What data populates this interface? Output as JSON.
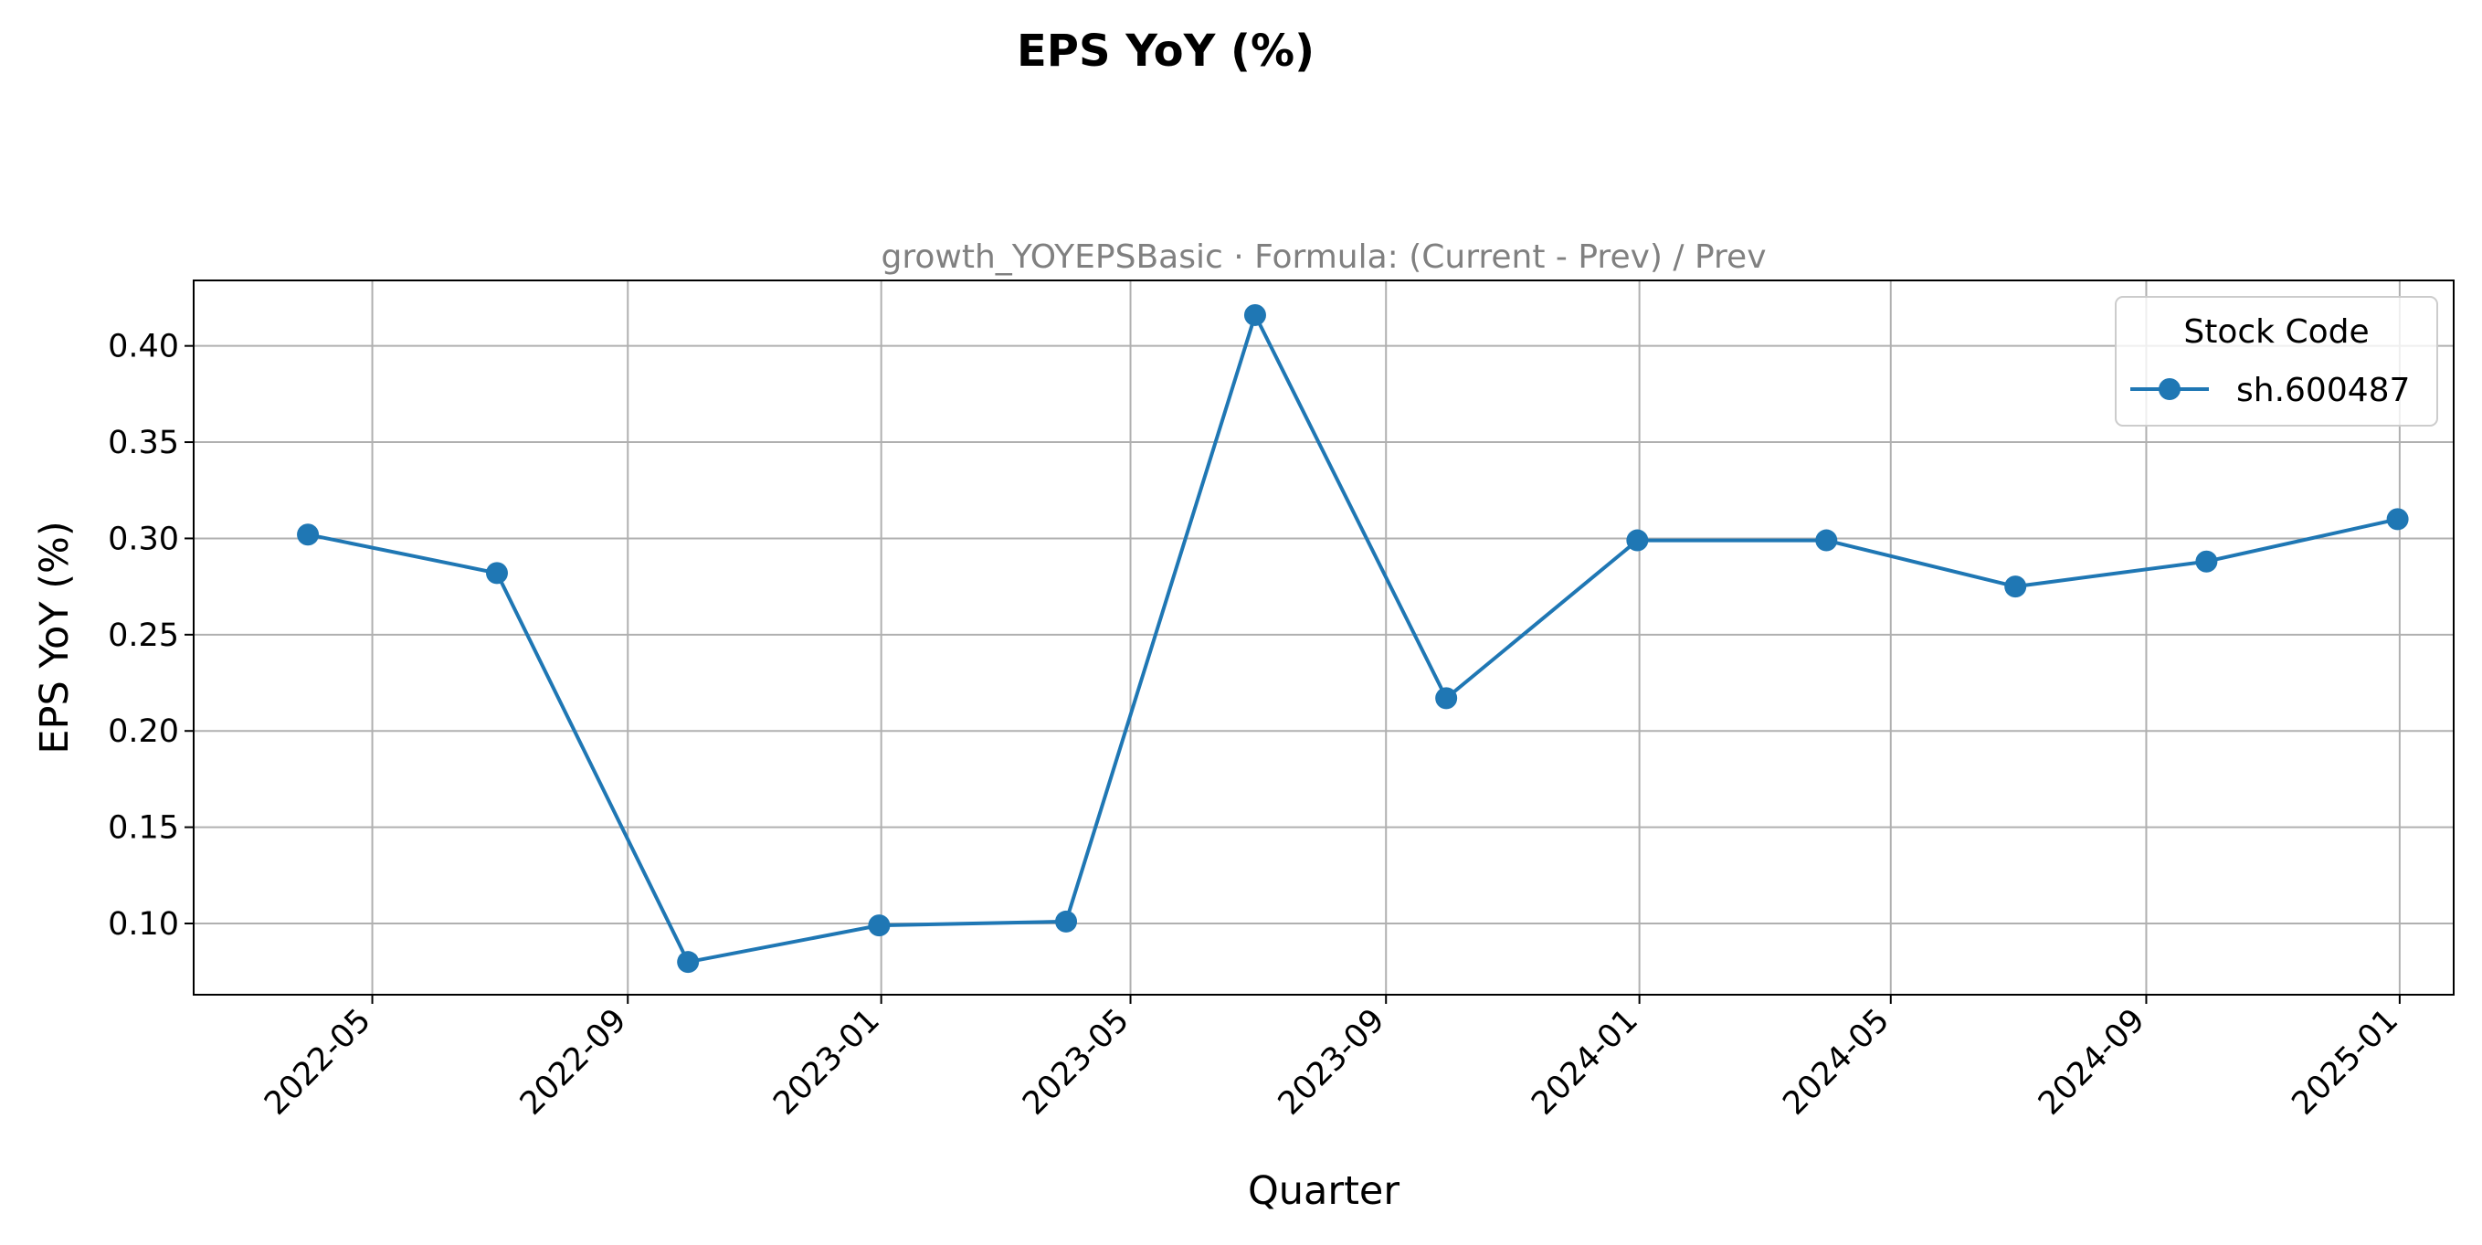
{
  "chart_data": {
    "type": "line",
    "title": "EPS YoY (%)",
    "subtitle": "growth_YOYEPSBasic · Formula: (Current - Prev) / Prev",
    "xlabel": "Quarter",
    "ylabel": "EPS YoY (%)",
    "x": [
      "2022-03-31",
      "2022-06-30",
      "2022-09-30",
      "2022-12-31",
      "2023-03-31",
      "2023-06-30",
      "2023-09-30",
      "2023-12-31",
      "2024-03-31",
      "2024-06-30",
      "2024-09-30",
      "2024-12-31"
    ],
    "series": [
      {
        "name": "sh.600487",
        "values": [
          0.302,
          0.282,
          0.08,
          0.099,
          0.101,
          0.416,
          0.217,
          0.299,
          0.299,
          0.275,
          0.288,
          0.31
        ]
      }
    ],
    "ylim": [
      0.063,
      0.434
    ],
    "xlim": [
      "2022-02-04",
      "2025-01-27"
    ],
    "yticks": [
      0.1,
      0.15,
      0.2,
      0.25,
      0.3,
      0.35,
      0.4
    ],
    "yticklabels": [
      "0.10",
      "0.15",
      "0.20",
      "0.25",
      "0.30",
      "0.35",
      "0.40"
    ],
    "xticks": [
      "2022-05-01",
      "2022-09-01",
      "2023-01-01",
      "2023-05-01",
      "2023-09-01",
      "2024-01-01",
      "2024-05-01",
      "2024-09-01",
      "2025-01-01"
    ],
    "xticklabels": [
      "2022-05",
      "2022-09",
      "2023-01",
      "2023-05",
      "2023-09",
      "2024-01",
      "2024-05",
      "2024-09",
      "2025-01"
    ],
    "grid": true,
    "legend": {
      "title": "Stock Code",
      "placement": "top-right"
    },
    "colors": {
      "line": "#1f77b4",
      "grid": "#b0b0b0",
      "axes": "#000000"
    }
  }
}
